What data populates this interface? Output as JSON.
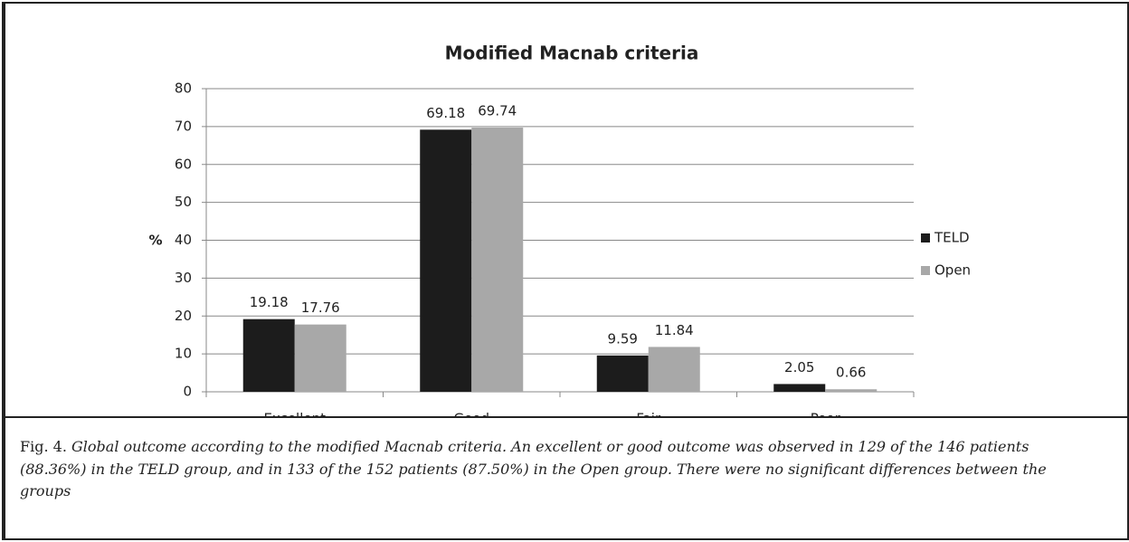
{
  "chart_data": {
    "type": "bar",
    "title": "Modified Macnab criteria",
    "y_label": "%",
    "categories": [
      "Excellent",
      "Good",
      "Fair",
      "Poor"
    ],
    "series": [
      {
        "name": "TELD",
        "color": "#1c1c1c",
        "values": [
          19.18,
          69.18,
          9.59,
          2.05
        ]
      },
      {
        "name": "Open",
        "color": "#a8a8a8",
        "values": [
          17.76,
          69.74,
          11.84,
          0.66
        ]
      }
    ],
    "ylim": [
      0,
      80
    ],
    "yticks": [
      0,
      10,
      20,
      30,
      40,
      50,
      60,
      70,
      80
    ],
    "grid": true,
    "legend": "right"
  },
  "caption": {
    "label": "Fig. 4.",
    "text": "Global outcome according to the modified Macnab criteria. An excellent or good outcome was observed in 129 of the 146 patients (88.36%) in the TELD group, and in 133 of the 152 patients (87.50%) in the Open group. There were no significant differences between the groups"
  }
}
